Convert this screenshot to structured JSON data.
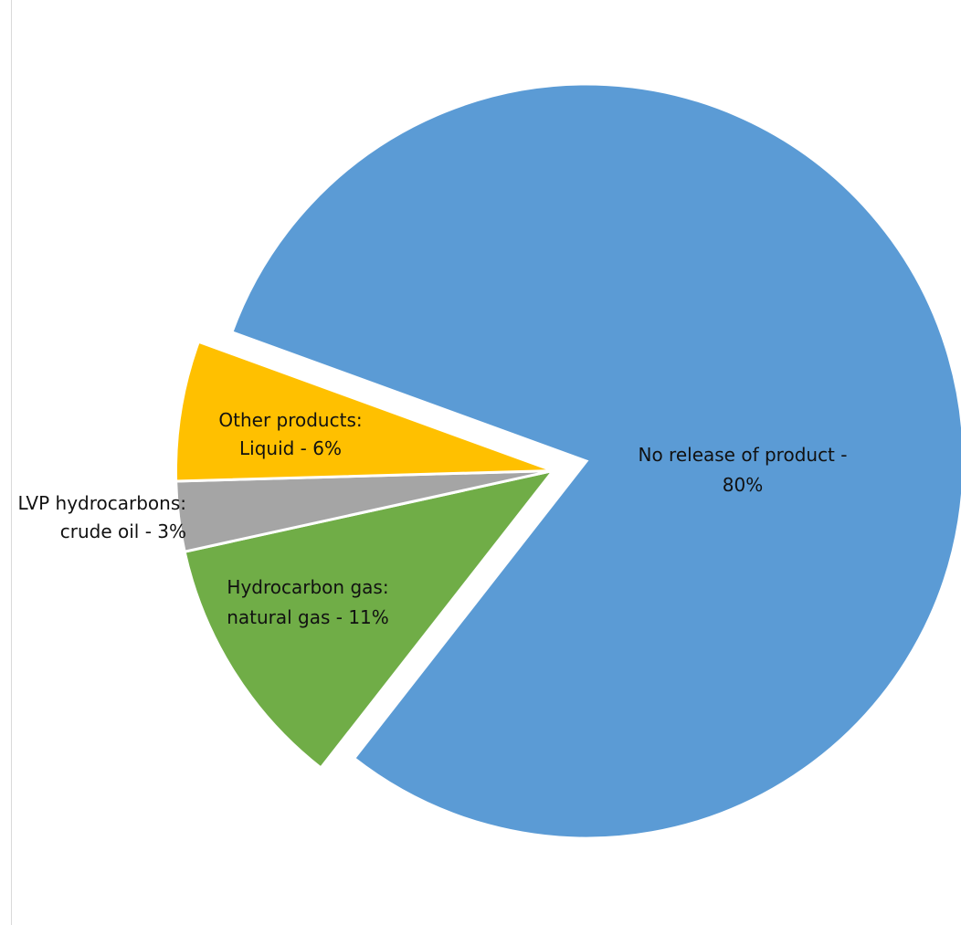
{
  "chart_data": {
    "type": "pie",
    "title": "",
    "slices": [
      {
        "id": "no-release",
        "value": 80,
        "color": "#5b9bd5",
        "label_lines": [
          "No release of product -",
          "80%"
        ]
      },
      {
        "id": "hydrocarbon-gas",
        "value": 11,
        "color": "#70ad47",
        "label_lines": [
          "Hydrocarbon gas:",
          "natural gas - 11%"
        ]
      },
      {
        "id": "lvp-crude",
        "value": 3,
        "color": "#a5a5a5",
        "label_lines": [
          "LVP hydrocarbons:",
          "crude oil - 3%"
        ]
      },
      {
        "id": "other-liquid",
        "value": 6,
        "color": "#ffc000",
        "label_lines": [
          "Other products:",
          "Liquid - 6%"
        ]
      }
    ]
  }
}
